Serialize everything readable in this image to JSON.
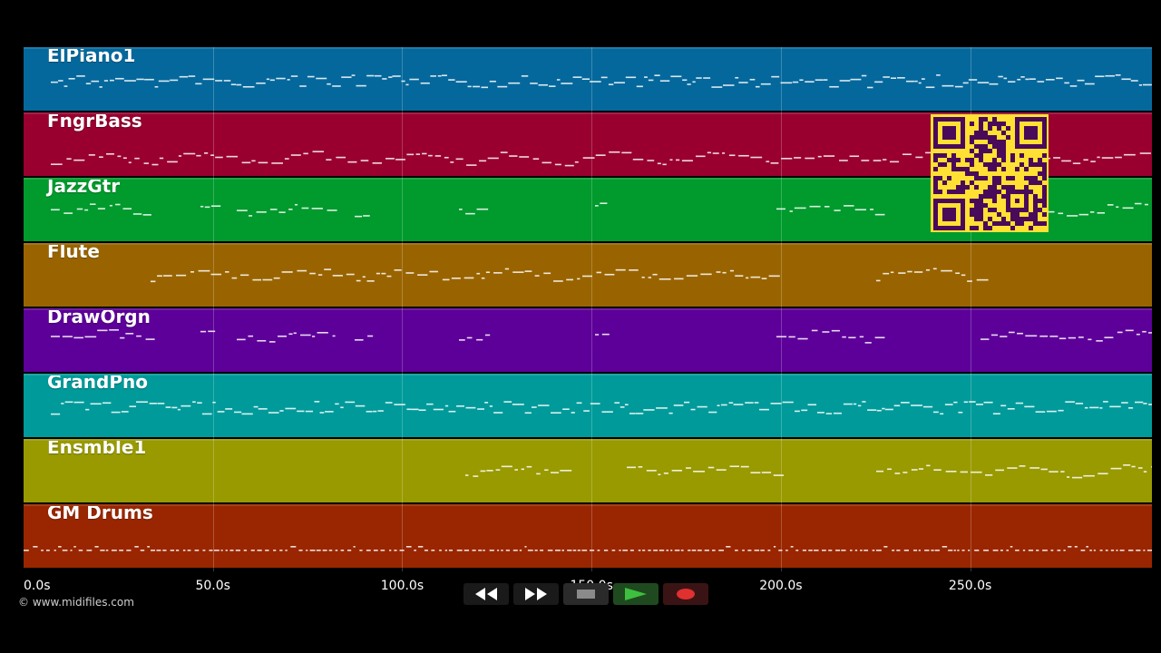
{
  "tracks": [
    {
      "name": "ElPiano1",
      "color": "#05689c"
    },
    {
      "name": "FngrBass",
      "color": "#99002f"
    },
    {
      "name": "JazzGtr",
      "color": "#009a2d"
    },
    {
      "name": "Flute",
      "color": "#996400"
    },
    {
      "name": "DrawOrgn",
      "color": "#5d0099"
    },
    {
      "name": "GrandPno",
      "color": "#009a9a"
    },
    {
      "name": "Ensmble1",
      "color": "#999a00"
    },
    {
      "name": "GM Drums",
      "color": "#992600"
    }
  ],
  "time_axis": {
    "ticks": [
      "0.0s",
      "50.0s",
      "100.0s",
      "150.0s",
      "200.0s",
      "250.0s"
    ],
    "tick_seconds": [
      0,
      50,
      100,
      150,
      200,
      250
    ],
    "max_seconds": 298
  },
  "copyright": "© www.midifiles.com",
  "transport": {
    "rewind_icon": "rewind-icon",
    "fast_forward_icon": "fast-forward-icon",
    "stop_icon": "stop-icon",
    "play_icon": "play-icon",
    "record_icon": "record-icon",
    "play_color": "#3fbf3f",
    "record_color": "#e03030"
  },
  "qr": {
    "color": "#ffe033",
    "module_color": "#4a0a5a"
  }
}
